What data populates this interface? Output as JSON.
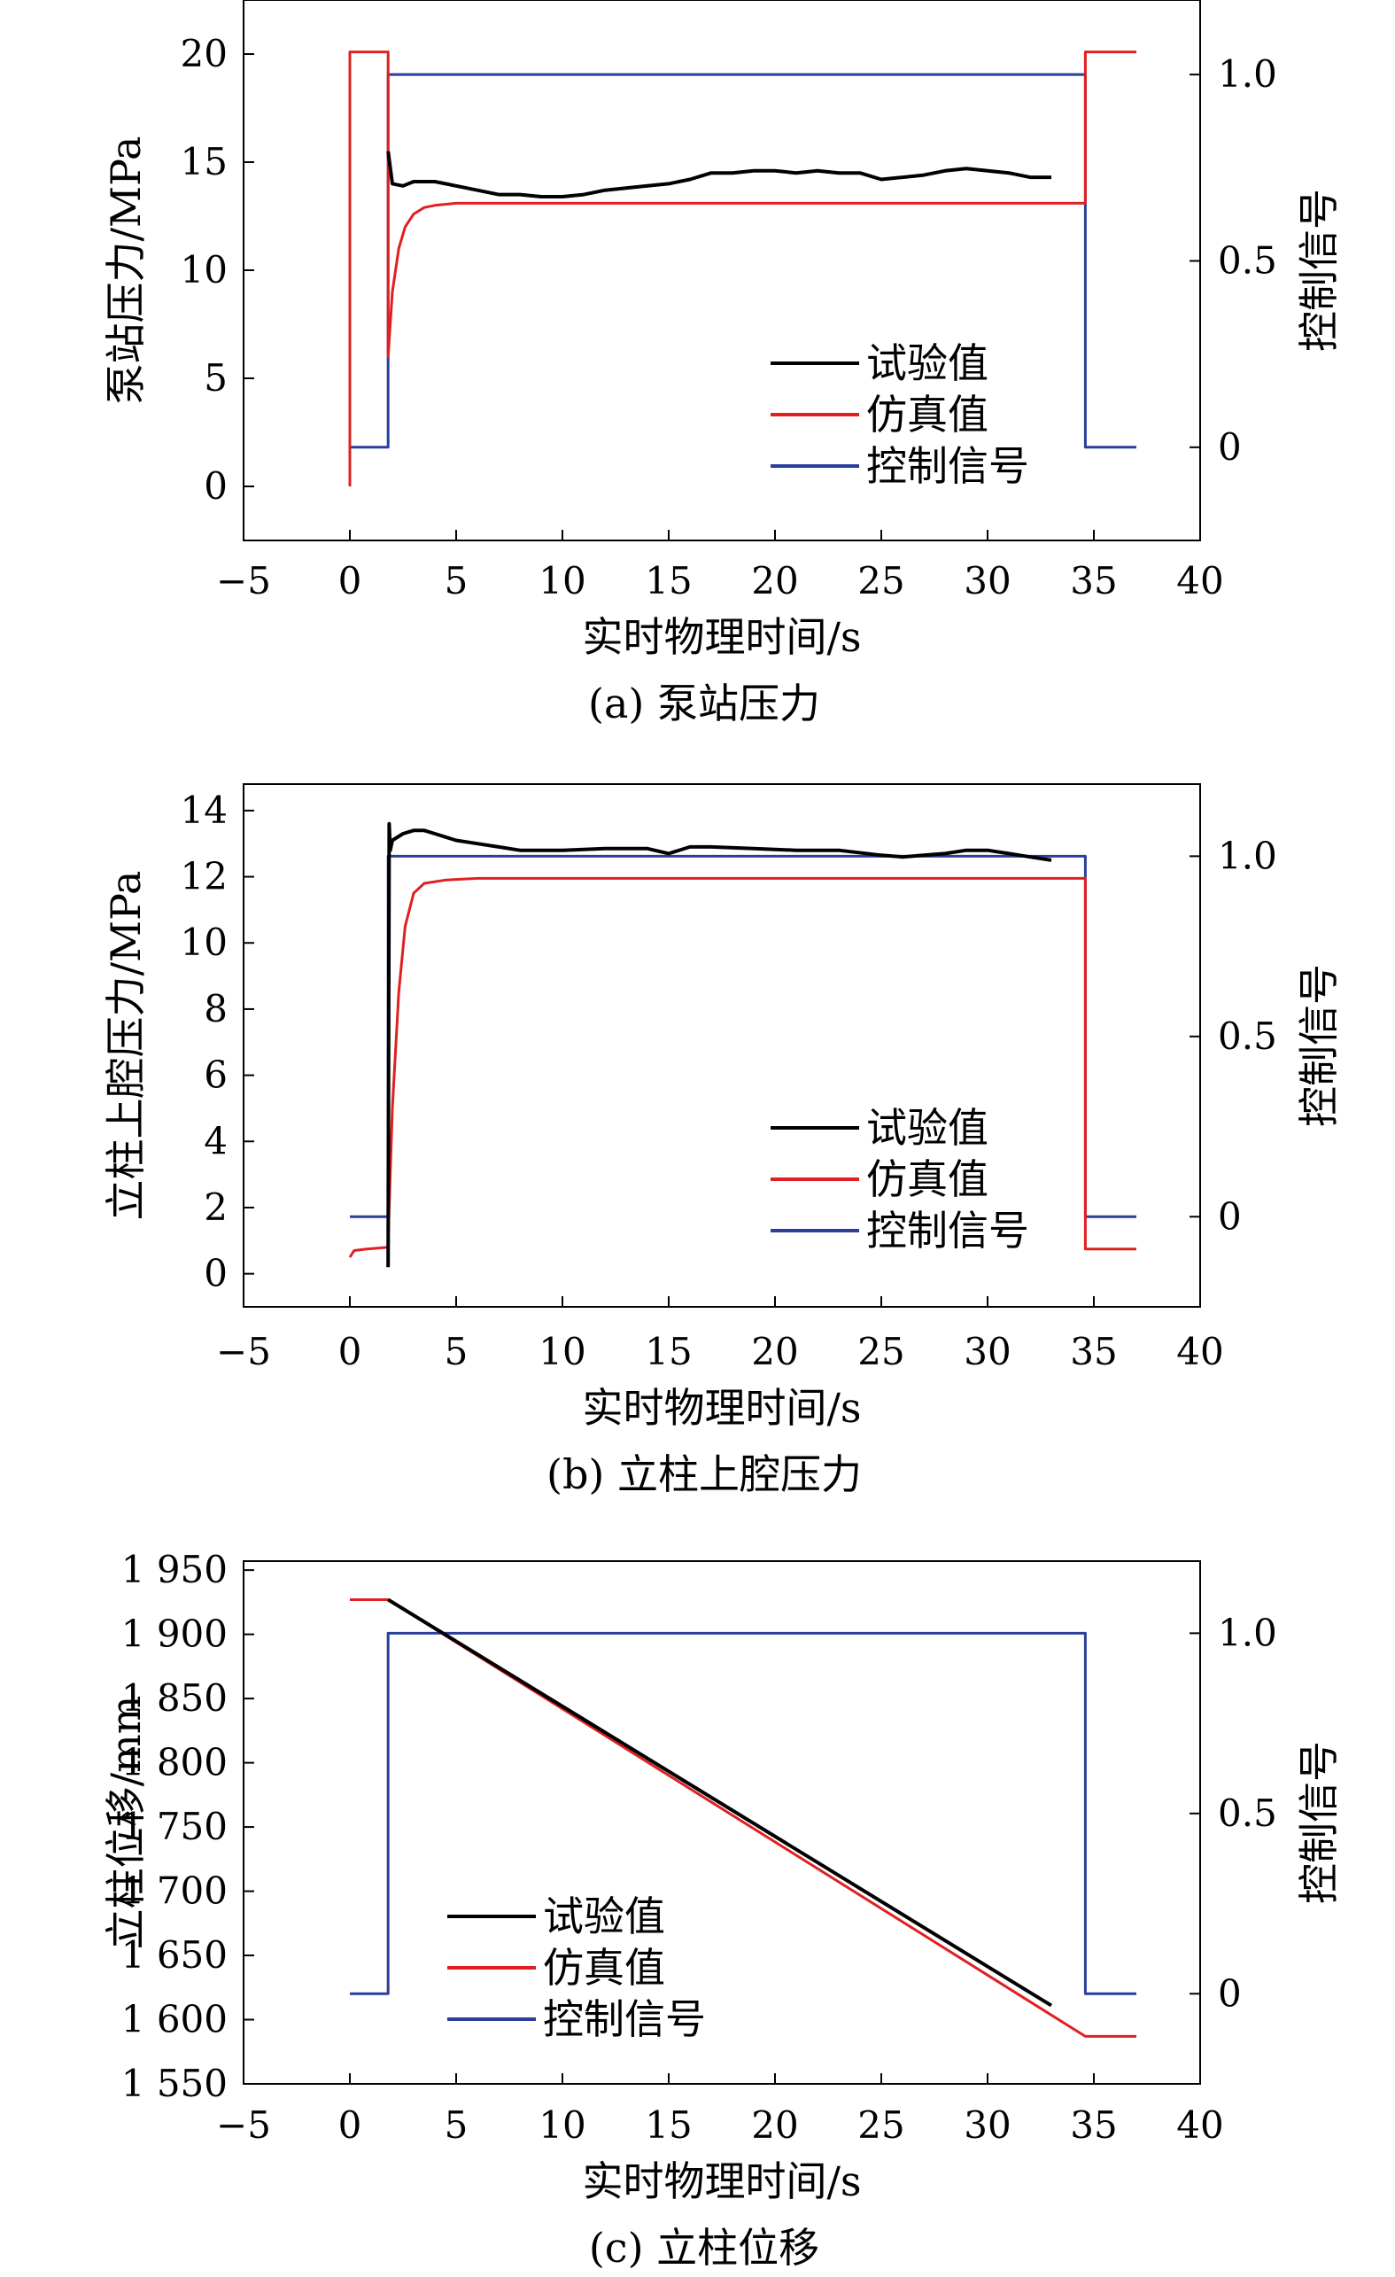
{
  "chart_data": [
    {
      "type": "line",
      "caption": "(a) 泵站压力",
      "xlabel": "实时物理时间/s",
      "ylabel": "泵站压力/MPa",
      "y2label": "控制信号",
      "xlim": [
        -5,
        40
      ],
      "ylim": [
        -2.5,
        22.5
      ],
      "y2lim": [
        -0.25,
        1.2
      ],
      "xticks": [
        -5,
        0,
        5,
        10,
        15,
        20,
        25,
        30,
        35,
        40
      ],
      "yticks": [
        0,
        5,
        10,
        15,
        20
      ],
      "ytick_labels": [
        "0",
        "5",
        "10",
        "15",
        "20"
      ],
      "y2ticks": [
        0,
        0.5,
        1.0
      ],
      "y2tick_labels": [
        "0",
        "0.5",
        "1.0"
      ],
      "legend_position": "center-right",
      "legend_entries": [
        "试验值",
        "仿真值",
        "控制信号"
      ],
      "series": [
        {
          "name": "试验值",
          "color": "#000000",
          "axis": "y",
          "x": [
            1.8,
            2.0,
            2.5,
            3.0,
            4.0,
            5.0,
            6.0,
            7.0,
            8.0,
            9.0,
            10.0,
            11.0,
            12.0,
            13.0,
            14.0,
            15.0,
            16.0,
            17.0,
            18.0,
            19.0,
            20.0,
            21.0,
            22.0,
            23.0,
            24.0,
            25.0,
            26.0,
            27.0,
            28.0,
            29.0,
            30.0,
            31.0,
            32.0,
            33.0
          ],
          "y": [
            15.5,
            14.0,
            13.9,
            14.1,
            14.1,
            13.9,
            13.7,
            13.5,
            13.5,
            13.4,
            13.4,
            13.5,
            13.7,
            13.8,
            13.9,
            14.0,
            14.2,
            14.5,
            14.5,
            14.6,
            14.6,
            14.5,
            14.6,
            14.5,
            14.5,
            14.2,
            14.3,
            14.4,
            14.6,
            14.7,
            14.6,
            14.5,
            14.3,
            14.3
          ]
        },
        {
          "name": "仿真值",
          "color": "#e02020",
          "axis": "y",
          "x": [
            0,
            0,
            1.8,
            1.8,
            2.0,
            2.3,
            2.6,
            3.0,
            3.5,
            4.0,
            5.0,
            10.0,
            20.0,
            30.0,
            34.6,
            34.6,
            37.0
          ],
          "y": [
            0,
            20.1,
            20.1,
            6.0,
            9.0,
            11.0,
            12.0,
            12.6,
            12.9,
            13.0,
            13.1,
            13.1,
            13.1,
            13.1,
            13.1,
            20.1,
            20.1
          ]
        },
        {
          "name": "控制信号",
          "color": "#2a3f9a",
          "axis": "y2",
          "x": [
            0,
            1.8,
            1.8,
            34.6,
            34.6,
            37.0
          ],
          "y": [
            0,
            0,
            1,
            1,
            0,
            0
          ]
        }
      ]
    },
    {
      "type": "line",
      "caption": "(b) 立柱上腔压力",
      "xlabel": "实时物理时间/s",
      "ylabel": "立柱上腔压力/MPa",
      "y2label": "控制信号",
      "xlim": [
        -5,
        40
      ],
      "ylim": [
        -1,
        14.8
      ],
      "y2lim": [
        -0.25,
        1.2
      ],
      "xticks": [
        -5,
        0,
        5,
        10,
        15,
        20,
        25,
        30,
        35,
        40
      ],
      "yticks": [
        0,
        2,
        4,
        6,
        8,
        10,
        12,
        14
      ],
      "ytick_labels": [
        "0",
        "2",
        "4",
        "6",
        "8",
        "10",
        "12",
        "14"
      ],
      "y2ticks": [
        0,
        0.5,
        1.0
      ],
      "y2tick_labels": [
        "0",
        "0.5",
        "1.0"
      ],
      "legend_position": "bottom-right",
      "legend_entries": [
        "试验值",
        "仿真值",
        "控制信号"
      ],
      "series": [
        {
          "name": "试验值",
          "color": "#000000",
          "axis": "y",
          "x": [
            1.8,
            1.85,
            1.9,
            2.0,
            2.5,
            3.0,
            3.5,
            4.0,
            5.0,
            6.0,
            7.0,
            8.0,
            9.0,
            10.0,
            12.0,
            14.0,
            15.0,
            16.0,
            17.0,
            19.0,
            21.0,
            23.0,
            25.0,
            26.0,
            27.0,
            28.0,
            29.0,
            30.0,
            31.0,
            32.0,
            33.0
          ],
          "y": [
            0.2,
            13.6,
            12.8,
            13.1,
            13.3,
            13.4,
            13.4,
            13.3,
            13.1,
            13.0,
            12.9,
            12.8,
            12.8,
            12.8,
            12.85,
            12.85,
            12.7,
            12.9,
            12.9,
            12.85,
            12.8,
            12.8,
            12.65,
            12.6,
            12.65,
            12.7,
            12.8,
            12.8,
            12.7,
            12.6,
            12.5
          ]
        },
        {
          "name": "仿真值",
          "color": "#e02020",
          "axis": "y",
          "x": [
            0,
            0.2,
            0.8,
            1.8,
            1.8,
            2.0,
            2.3,
            2.6,
            3.0,
            3.5,
            4.5,
            6.0,
            10.0,
            20.0,
            30.0,
            34.6,
            34.6,
            37.0
          ],
          "y": [
            0.5,
            0.7,
            0.75,
            0.8,
            1.0,
            5.0,
            8.5,
            10.5,
            11.5,
            11.8,
            11.9,
            11.95,
            11.95,
            11.95,
            11.95,
            11.95,
            0.75,
            0.75
          ]
        },
        {
          "name": "控制信号",
          "color": "#2a3f9a",
          "axis": "y2",
          "x": [
            0,
            1.8,
            1.8,
            34.6,
            34.6,
            37.0
          ],
          "y": [
            0,
            0,
            1,
            1,
            0,
            0
          ]
        }
      ]
    },
    {
      "type": "line",
      "caption": "(c) 立柱位移",
      "xlabel": "实时物理时间/s",
      "ylabel": "立柱位移/mm",
      "y2label": "控制信号",
      "xlim": [
        -5,
        40
      ],
      "ylim": [
        1550,
        1957
      ],
      "y2lim": [
        -0.25,
        1.2
      ],
      "xticks": [
        -5,
        0,
        5,
        10,
        15,
        20,
        25,
        30,
        35,
        40
      ],
      "yticks": [
        1550,
        1600,
        1650,
        1700,
        1750,
        1800,
        1850,
        1900,
        1950
      ],
      "ytick_labels": [
        "1 550",
        "1 600",
        "1 650",
        "1 700",
        "1 750",
        "1 800",
        "1 850",
        "1 900",
        "1 950"
      ],
      "y2ticks": [
        0,
        0.5,
        1.0
      ],
      "y2tick_labels": [
        "0",
        "0.5",
        "1.0"
      ],
      "legend_position": "bottom-left",
      "legend_entries": [
        "试验值",
        "仿真值",
        "控制信号"
      ],
      "series": [
        {
          "name": "试验值",
          "color": "#000000",
          "axis": "y",
          "x": [
            1.8,
            33.0
          ],
          "y": [
            1927,
            1611
          ]
        },
        {
          "name": "仿真值",
          "color": "#e02020",
          "axis": "y",
          "x": [
            0,
            1.8,
            34.6,
            37.0
          ],
          "y": [
            1927,
            1927,
            1587,
            1587
          ]
        },
        {
          "name": "控制信号",
          "color": "#2a3f9a",
          "axis": "y2",
          "x": [
            0,
            1.8,
            1.8,
            34.6,
            34.6,
            37.0
          ],
          "y": [
            0,
            0,
            1,
            1,
            0,
            0
          ]
        }
      ]
    }
  ]
}
